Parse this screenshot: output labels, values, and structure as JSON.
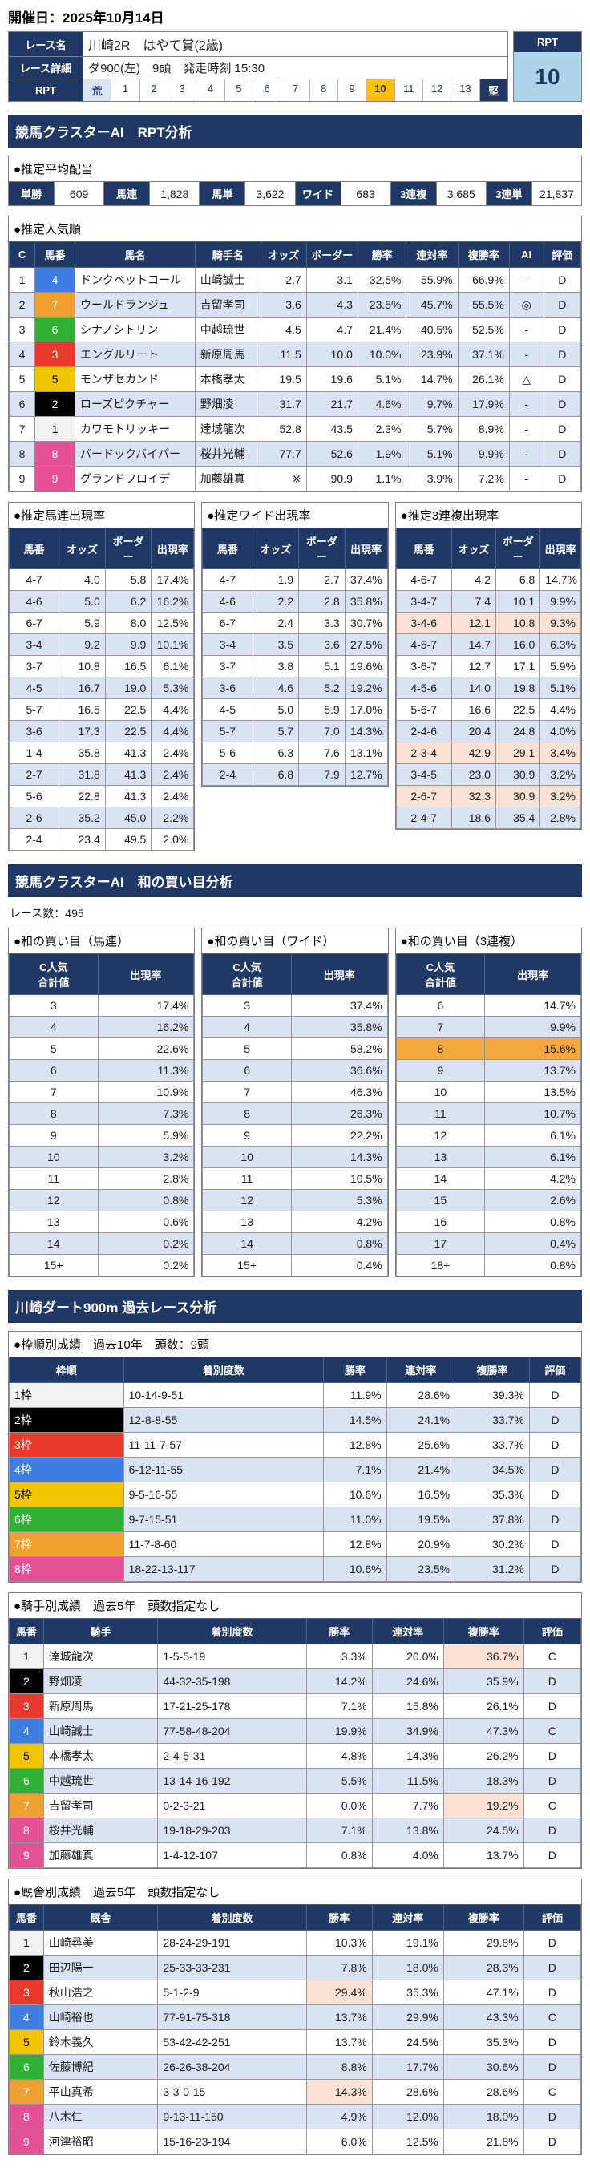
{
  "page": {
    "date_label": "開催日：2025年10月14日"
  },
  "colors": {
    "navy": "#1f3864",
    "row_alt_blue": "#dae3f3",
    "highlight_peach": "#fbe2d5",
    "highlight_orange": "#f5a93c",
    "highlight_light_orange": "#fbd9a0",
    "rpt_selected_bg": "#ffc000",
    "rpt_value_bg": "#aed4ec",
    "waku": {
      "1": "#f2f2f2",
      "2": "#000000",
      "3": "#e8392d",
      "4": "#3d7ee0",
      "5": "#f0c400",
      "6": "#2eb135",
      "7": "#f0a030",
      "8": "#e45197",
      "9": "#e45197"
    }
  },
  "race": {
    "name_label": "レース名",
    "name": "川崎2R　はやて賞(2歳)",
    "detail_label": "レース詳細",
    "detail": "ダ900(左)　9頭　発走時刻 15:30",
    "rpt_label": "RPT",
    "rpt_scale": [
      "荒",
      "1",
      "2",
      "3",
      "4",
      "5",
      "6",
      "7",
      "8",
      "9",
      "10",
      "11",
      "12",
      "13",
      "堅"
    ],
    "rpt_selected": "10",
    "rpt_box_label": "RPT",
    "rpt_value": "10"
  },
  "sections": {
    "rpt_analysis_title": "競馬クラスターAI　RPT分析",
    "wa_title": "競馬クラスターAI　和の買い目分析",
    "past_title": "川崎ダート900m 過去レース分析"
  },
  "payout": {
    "title": "●推定平均配当",
    "items": [
      [
        "単勝",
        "609"
      ],
      [
        "馬連",
        "1,828"
      ],
      [
        "馬単",
        "3,622"
      ],
      [
        "ワイド",
        "683"
      ],
      [
        "3連複",
        "3,685"
      ],
      [
        "3連単",
        "21,837"
      ]
    ]
  },
  "popularity": {
    "title": "●推定人気順",
    "headers": [
      "C",
      "馬番",
      "馬名",
      "騎手名",
      "オッズ",
      "ボーダー",
      "勝率",
      "連対率",
      "複勝率",
      "AI",
      "評価"
    ],
    "rows": [
      {
        "c": "1",
        "num": "4",
        "horse": "ドンクベットコール",
        "jockey": "山崎誠士",
        "odds": "2.7",
        "border": "3.1",
        "win": "32.5%",
        "ren": "55.9%",
        "fuku": "66.9%",
        "ai": "-",
        "rating": "D"
      },
      {
        "c": "2",
        "num": "7",
        "horse": "ウールドランジュ",
        "jockey": "吉留孝司",
        "odds": "3.6",
        "border": "4.3",
        "win": "23.5%",
        "ren": "45.7%",
        "fuku": "55.5%",
        "ai": "◎",
        "rating": "D"
      },
      {
        "c": "3",
        "num": "6",
        "horse": "シナノシトリン",
        "jockey": "中越琉世",
        "odds": "4.5",
        "border": "4.7",
        "win": "21.4%",
        "ren": "40.5%",
        "fuku": "52.5%",
        "ai": "-",
        "rating": "D"
      },
      {
        "c": "4",
        "num": "3",
        "horse": "エングルリート",
        "jockey": "新原周馬",
        "odds": "11.5",
        "border": "10.0",
        "win": "10.0%",
        "ren": "23.9%",
        "fuku": "37.1%",
        "ai": "-",
        "rating": "D"
      },
      {
        "c": "5",
        "num": "5",
        "horse": "モンザセカンド",
        "jockey": "本橋孝太",
        "odds": "19.5",
        "border": "19.6",
        "win": "5.1%",
        "ren": "14.7%",
        "fuku": "26.1%",
        "ai": "△",
        "rating": "D"
      },
      {
        "c": "6",
        "num": "2",
        "horse": "ローズピクチャー",
        "jockey": "野畑凌",
        "odds": "31.7",
        "border": "21.7",
        "win": "4.6%",
        "ren": "9.7%",
        "fuku": "17.9%",
        "ai": "-",
        "rating": "D"
      },
      {
        "c": "7",
        "num": "1",
        "horse": "カワモトリッキー",
        "jockey": "達城龍次",
        "odds": "52.8",
        "border": "43.5",
        "win": "2.3%",
        "ren": "5.7%",
        "fuku": "8.9%",
        "ai": "-",
        "rating": "D"
      },
      {
        "c": "8",
        "num": "8",
        "horse": "バードックバイパー",
        "jockey": "桜井光輔",
        "odds": "77.7",
        "border": "52.6",
        "win": "1.9%",
        "ren": "5.1%",
        "fuku": "9.9%",
        "ai": "-",
        "rating": "D"
      },
      {
        "c": "9",
        "num": "9",
        "horse": "グランドフロイデ",
        "jockey": "加藤雄真",
        "odds": "※",
        "border": "90.9",
        "win": "1.1%",
        "ren": "3.9%",
        "fuku": "7.2%",
        "ai": "-",
        "rating": "D"
      }
    ]
  },
  "umaren": {
    "title": "●推定馬連出現率",
    "headers": [
      "馬番",
      "オッズ",
      "ボーダー",
      "出現率"
    ],
    "rows": [
      [
        "4-7",
        "4.0",
        "5.8",
        "17.4%"
      ],
      [
        "4-6",
        "5.0",
        "6.2",
        "16.2%"
      ],
      [
        "6-7",
        "5.9",
        "8.0",
        "12.5%"
      ],
      [
        "3-4",
        "9.2",
        "9.9",
        "10.1%"
      ],
      [
        "3-7",
        "10.8",
        "16.5",
        "6.1%"
      ],
      [
        "4-5",
        "16.7",
        "19.0",
        "5.3%"
      ],
      [
        "5-7",
        "16.5",
        "22.5",
        "4.4%"
      ],
      [
        "3-6",
        "17.3",
        "22.5",
        "4.4%"
      ],
      [
        "1-4",
        "35.8",
        "41.3",
        "2.4%"
      ],
      [
        "2-7",
        "31.8",
        "41.3",
        "2.4%"
      ],
      [
        "5-6",
        "22.8",
        "41.3",
        "2.4%"
      ],
      [
        "2-6",
        "35.2",
        "45.0",
        "2.2%"
      ],
      [
        "2-4",
        "23.4",
        "49.5",
        "2.0%"
      ]
    ]
  },
  "wide": {
    "title": "●推定ワイド出現率",
    "headers": [
      "馬番",
      "オッズ",
      "ボーダー",
      "出現率"
    ],
    "rows": [
      [
        "4-7",
        "1.9",
        "2.7",
        "37.4%"
      ],
      [
        "4-6",
        "2.2",
        "2.8",
        "35.8%"
      ],
      [
        "6-7",
        "2.4",
        "3.3",
        "30.7%"
      ],
      [
        "3-4",
        "3.5",
        "3.6",
        "27.5%"
      ],
      [
        "3-7",
        "3.8",
        "5.1",
        "19.6%"
      ],
      [
        "3-6",
        "4.6",
        "5.2",
        "19.2%"
      ],
      [
        "4-5",
        "5.0",
        "5.9",
        "17.0%"
      ],
      [
        "5-7",
        "5.7",
        "7.0",
        "14.3%"
      ],
      [
        "5-6",
        "6.3",
        "7.6",
        "13.1%"
      ],
      [
        "2-4",
        "6.8",
        "7.9",
        "12.7%"
      ]
    ]
  },
  "sanrenpuku": {
    "title": "●推定3連複出現率",
    "headers": [
      "馬番",
      "オッズ",
      "ボーダー",
      "出現率"
    ],
    "rows": [
      {
        "c": [
          "4-6-7",
          "4.2",
          "6.8",
          "14.7%"
        ]
      },
      {
        "c": [
          "3-4-7",
          "7.4",
          "10.1",
          "9.9%"
        ]
      },
      {
        "c": [
          "3-4-6",
          "12.1",
          "10.8",
          "9.3%"
        ],
        "hl": true
      },
      {
        "c": [
          "4-5-7",
          "14.7",
          "16.0",
          "6.3%"
        ]
      },
      {
        "c": [
          "3-6-7",
          "12.7",
          "17.1",
          "5.9%"
        ]
      },
      {
        "c": [
          "4-5-6",
          "14.0",
          "19.8",
          "5.1%"
        ]
      },
      {
        "c": [
          "5-6-7",
          "16.6",
          "22.5",
          "4.4%"
        ]
      },
      {
        "c": [
          "2-4-6",
          "20.4",
          "24.8",
          "4.0%"
        ]
      },
      {
        "c": [
          "2-3-4",
          "42.9",
          "29.1",
          "3.4%"
        ],
        "hl": true
      },
      {
        "c": [
          "3-4-5",
          "23.0",
          "30.9",
          "3.2%"
        ]
      },
      {
        "c": [
          "2-6-7",
          "32.3",
          "30.9",
          "3.2%"
        ],
        "hl": true
      },
      {
        "c": [
          "2-4-7",
          "18.6",
          "35.4",
          "2.8%"
        ]
      }
    ]
  },
  "wa": {
    "race_count": "レース数：495",
    "headers": [
      "C人気\n合計値",
      "出現率"
    ],
    "umaren": {
      "title": "●和の買い目（馬連）",
      "rows": [
        {
          "c": [
            "3",
            "17.4%"
          ]
        },
        {
          "c": [
            "4",
            "16.2%"
          ]
        },
        {
          "c": [
            "5",
            "22.6%"
          ]
        },
        {
          "c": [
            "6",
            "11.3%"
          ]
        },
        {
          "c": [
            "7",
            "10.9%"
          ]
        },
        {
          "c": [
            "8",
            "7.3%"
          ]
        },
        {
          "c": [
            "9",
            "5.9%"
          ]
        },
        {
          "c": [
            "10",
            "3.2%"
          ]
        },
        {
          "c": [
            "11",
            "2.8%"
          ]
        },
        {
          "c": [
            "12",
            "0.8%"
          ]
        },
        {
          "c": [
            "13",
            "0.6%"
          ]
        },
        {
          "c": [
            "14",
            "0.2%"
          ]
        },
        {
          "c": [
            "15+",
            "0.2%"
          ]
        }
      ]
    },
    "wide": {
      "title": "●和の買い目（ワイド）",
      "rows": [
        {
          "c": [
            "3",
            "37.4%"
          ]
        },
        {
          "c": [
            "4",
            "35.8%"
          ]
        },
        {
          "c": [
            "5",
            "58.2%"
          ]
        },
        {
          "c": [
            "6",
            "36.6%"
          ]
        },
        {
          "c": [
            "7",
            "46.3%"
          ]
        },
        {
          "c": [
            "8",
            "26.3%"
          ]
        },
        {
          "c": [
            "9",
            "22.2%"
          ]
        },
        {
          "c": [
            "10",
            "14.3%"
          ]
        },
        {
          "c": [
            "11",
            "10.5%"
          ]
        },
        {
          "c": [
            "12",
            "5.3%"
          ]
        },
        {
          "c": [
            "13",
            "4.2%"
          ]
        },
        {
          "c": [
            "14",
            "0.8%"
          ]
        },
        {
          "c": [
            "15+",
            "0.4%"
          ]
        }
      ]
    },
    "sanrenpuku": {
      "title": "●和の買い目（3連複）",
      "rows": [
        {
          "c": [
            "6",
            "14.7%"
          ]
        },
        {
          "c": [
            "7",
            "9.9%"
          ]
        },
        {
          "c": [
            "8",
            "15.6%"
          ],
          "hl": "orange"
        },
        {
          "c": [
            "9",
            "13.7%"
          ]
        },
        {
          "c": [
            "10",
            "13.5%"
          ]
        },
        {
          "c": [
            "11",
            "10.7%"
          ],
          "hl": "lorange"
        },
        {
          "c": [
            "12",
            "6.1%"
          ]
        },
        {
          "c": [
            "13",
            "6.1%"
          ]
        },
        {
          "c": [
            "14",
            "4.2%"
          ]
        },
        {
          "c": [
            "15",
            "2.6%"
          ]
        },
        {
          "c": [
            "16",
            "0.8%"
          ]
        },
        {
          "c": [
            "17",
            "0.4%"
          ],
          "hl": "orange"
        },
        {
          "c": [
            "18+",
            "0.8%"
          ]
        }
      ]
    }
  },
  "waku_stats": {
    "title": "●枠順別成績　過去10年　頭数：9頭",
    "headers": [
      "枠順",
      "着別度数",
      "勝率",
      "連対率",
      "複勝率",
      "評価"
    ],
    "rows": [
      {
        "label": "1枠",
        "num": "1",
        "cells": [
          "10-14-9-51",
          "11.9%",
          "28.6%",
          "39.3%",
          "D"
        ]
      },
      {
        "label": "2枠",
        "num": "2",
        "cells": [
          "12-8-8-55",
          "14.5%",
          "24.1%",
          "33.7%",
          "D"
        ]
      },
      {
        "label": "3枠",
        "num": "3",
        "cells": [
          "11-11-7-57",
          "12.8%",
          "25.6%",
          "33.7%",
          "D"
        ]
      },
      {
        "label": "4枠",
        "num": "4",
        "cells": [
          "6-12-11-55",
          "7.1%",
          "21.4%",
          "34.5%",
          "D"
        ]
      },
      {
        "label": "5枠",
        "num": "5",
        "cells": [
          "9-5-16-55",
          "10.6%",
          "16.5%",
          "35.3%",
          "D"
        ]
      },
      {
        "label": "6枠",
        "num": "6",
        "cells": [
          "9-7-15-51",
          "11.0%",
          "19.5%",
          "37.8%",
          "D"
        ]
      },
      {
        "label": "7枠",
        "num": "7",
        "cells": [
          "11-7-8-60",
          "12.8%",
          "20.9%",
          "30.2%",
          "D"
        ]
      },
      {
        "label": "8枠",
        "num": "8",
        "cells": [
          "18-22-13-117",
          "10.6%",
          "23.5%",
          "31.2%",
          "D"
        ]
      }
    ]
  },
  "jockey_stats": {
    "title": "●騎手別成績　過去5年　頭数指定なし",
    "headers": [
      "馬番",
      "騎手",
      "着別度数",
      "勝率",
      "連対率",
      "複勝率",
      "評価"
    ],
    "rows": [
      {
        "num": "1",
        "name": "達城龍次",
        "cells": [
          "1-5-5-19",
          "3.3%",
          "20.0%",
          "36.7%",
          "C"
        ],
        "hl": 3
      },
      {
        "num": "2",
        "name": "野畑凌",
        "cells": [
          "44-32-35-198",
          "14.2%",
          "24.6%",
          "35.9%",
          "D"
        ]
      },
      {
        "num": "3",
        "name": "新原周馬",
        "cells": [
          "17-21-25-178",
          "7.1%",
          "15.8%",
          "26.1%",
          "D"
        ]
      },
      {
        "num": "4",
        "name": "山崎誠士",
        "cells": [
          "77-58-48-204",
          "19.9%",
          "34.9%",
          "47.3%",
          "C"
        ]
      },
      {
        "num": "5",
        "name": "本橋孝太",
        "cells": [
          "2-4-5-31",
          "4.8%",
          "14.3%",
          "26.2%",
          "D"
        ]
      },
      {
        "num": "6",
        "name": "中越琉世",
        "cells": [
          "13-14-16-192",
          "5.5%",
          "11.5%",
          "18.3%",
          "D"
        ]
      },
      {
        "num": "7",
        "name": "吉留孝司",
        "cells": [
          "0-2-3-21",
          "0.0%",
          "7.7%",
          "19.2%",
          "C"
        ],
        "hl": 3
      },
      {
        "num": "8",
        "name": "桜井光輔",
        "cells": [
          "19-18-29-203",
          "7.1%",
          "13.8%",
          "24.5%",
          "D"
        ]
      },
      {
        "num": "9",
        "name": "加藤雄真",
        "cells": [
          "1-4-12-107",
          "0.8%",
          "4.0%",
          "13.7%",
          "D"
        ]
      }
    ]
  },
  "stable_stats": {
    "title": "●厩舎別成績　過去5年　頭数指定なし",
    "headers": [
      "馬番",
      "厩舎",
      "着別度数",
      "勝率",
      "連対率",
      "複勝率",
      "評価"
    ],
    "rows": [
      {
        "num": "1",
        "name": "山崎尋美",
        "cells": [
          "28-24-29-191",
          "10.3%",
          "19.1%",
          "29.8%",
          "D"
        ]
      },
      {
        "num": "2",
        "name": "田辺陽一",
        "cells": [
          "25-33-33-231",
          "7.8%",
          "18.0%",
          "28.3%",
          "D"
        ]
      },
      {
        "num": "3",
        "name": "秋山浩之",
        "cells": [
          "5-1-2-9",
          "29.4%",
          "35.3%",
          "47.1%",
          "D"
        ],
        "hl": 1
      },
      {
        "num": "4",
        "name": "山崎裕也",
        "cells": [
          "77-91-75-318",
          "13.7%",
          "29.9%",
          "43.3%",
          "C"
        ]
      },
      {
        "num": "5",
        "name": "鈴木義久",
        "cells": [
          "53-42-42-251",
          "13.7%",
          "24.5%",
          "35.3%",
          "D"
        ]
      },
      {
        "num": "6",
        "name": "佐藤博紀",
        "cells": [
          "26-26-38-204",
          "8.8%",
          "17.7%",
          "30.6%",
          "D"
        ]
      },
      {
        "num": "7",
        "name": "平山真希",
        "cells": [
          "3-3-0-15",
          "14.3%",
          "28.6%",
          "28.6%",
          "C"
        ],
        "hl": 1
      },
      {
        "num": "8",
        "name": "八木仁",
        "cells": [
          "9-13-11-150",
          "4.9%",
          "12.0%",
          "18.0%",
          "D"
        ]
      },
      {
        "num": "9",
        "name": "河津裕昭",
        "cells": [
          "15-16-23-194",
          "6.0%",
          "12.5%",
          "21.8%",
          "D"
        ]
      }
    ]
  }
}
